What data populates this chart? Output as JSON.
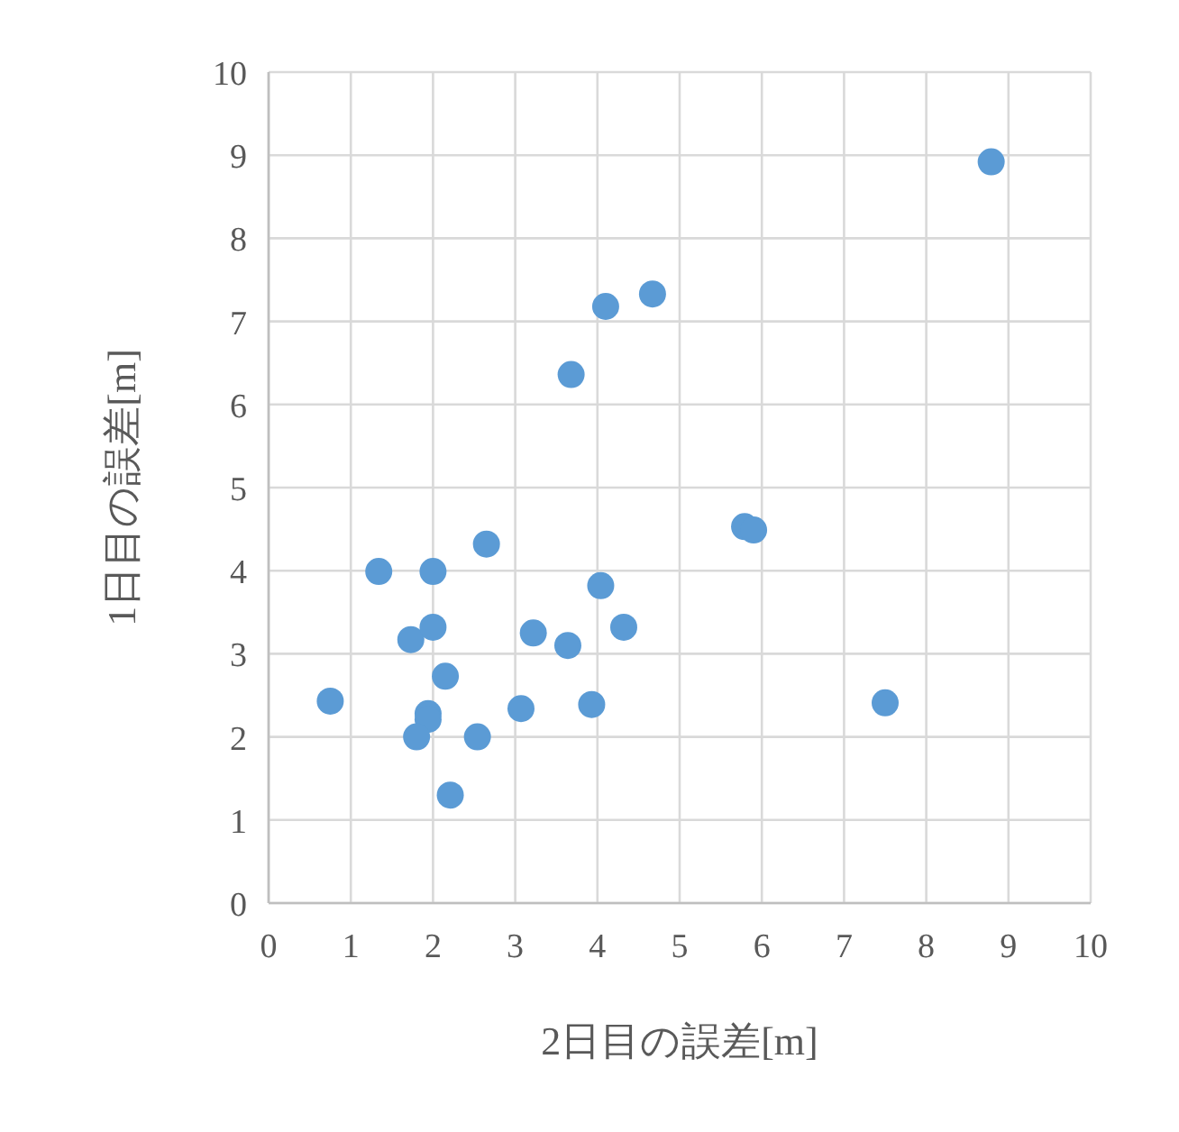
{
  "chart_data": {
    "type": "scatter",
    "xlabel": "2日目の誤差[m]",
    "ylabel": "1日目の誤差[m]",
    "x": [
      0.75,
      1.34,
      2.0,
      1.73,
      2.0,
      2.15,
      1.94,
      1.94,
      1.8,
      2.54,
      2.21,
      2.65,
      3.22,
      3.07,
      3.64,
      3.93,
      4.04,
      4.32,
      3.68,
      4.1,
      4.67,
      5.79,
      5.9,
      7.5,
      8.79
    ],
    "series": [
      {
        "color": "#5b9bd5",
        "values": [
          2.43,
          3.99,
          3.99,
          3.17,
          3.32,
          2.73,
          2.28,
          2.21,
          2.0,
          2.0,
          1.3,
          4.32,
          3.25,
          2.34,
          3.1,
          2.39,
          3.82,
          3.32,
          6.36,
          7.18,
          7.33,
          4.53,
          4.49,
          2.41,
          8.92
        ]
      }
    ],
    "xlim": [
      0,
      10
    ],
    "ylim": [
      0,
      10
    ],
    "xticks": [
      0,
      1,
      2,
      3,
      4,
      5,
      6,
      7,
      8,
      9,
      10
    ],
    "yticks": [
      0,
      1,
      2,
      3,
      4,
      5,
      6,
      7,
      8,
      9,
      10
    ],
    "grid": true,
    "marker": "circle"
  }
}
